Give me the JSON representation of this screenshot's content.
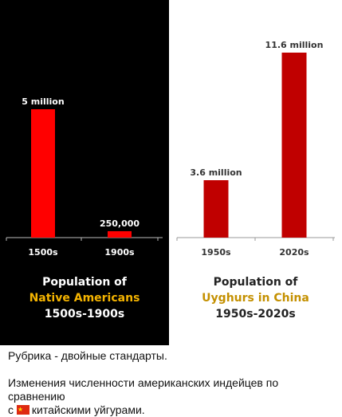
{
  "chart_data": [
    {
      "type": "bar",
      "categories": [
        "1500s",
        "1900s"
      ],
      "values": [
        5000000,
        250000
      ],
      "data_labels": [
        "5 million",
        "250,000"
      ],
      "title_lines": [
        "Population of",
        "Native Americans",
        "1500s-1900s"
      ],
      "ylim": [
        0,
        5000000
      ],
      "bar_color": "#ff0000",
      "background": "#000000",
      "grid": false
    },
    {
      "type": "bar",
      "categories": [
        "1950s",
        "2020s"
      ],
      "values": [
        3600000,
        11600000
      ],
      "data_labels": [
        "3.6 million",
        "11.6 million"
      ],
      "title_lines": [
        "Population of",
        "Uyghurs in China",
        "1950s-2020s"
      ],
      "ylim": [
        0,
        11600000
      ],
      "bar_color": "#c00000",
      "background": "#ffffff",
      "grid": false
    }
  ],
  "post": {
    "line1": "Рубрика - двойные стандарты.",
    "line2_before": "Изменения численности американских индейцев по сравнению",
    "line2_prefix": "с",
    "flag_icon": "china-flag-icon",
    "line2_after": "китайскими уйгурами."
  }
}
